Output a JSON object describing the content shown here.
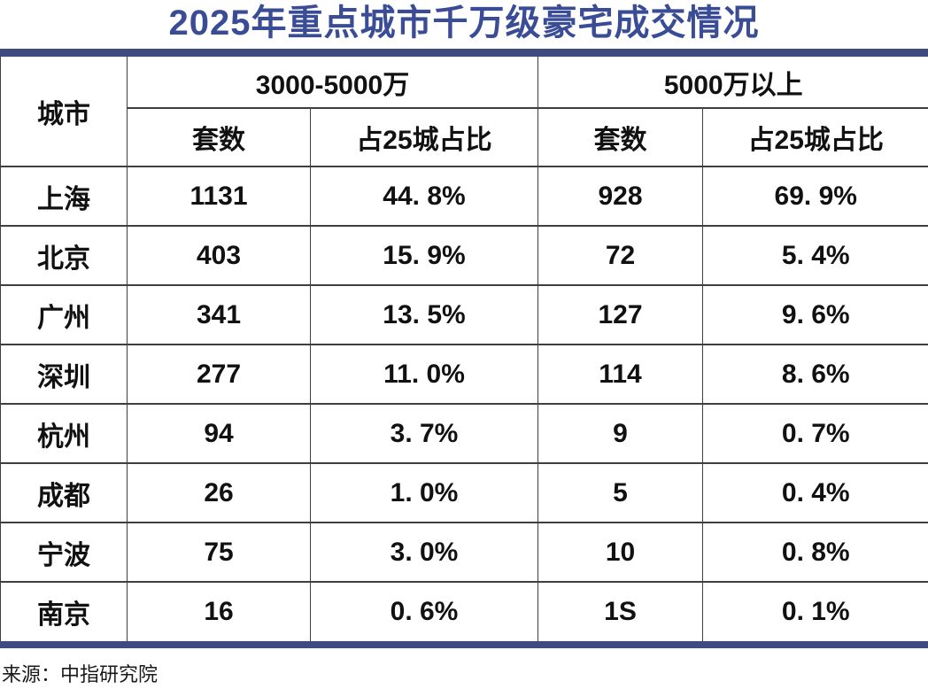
{
  "title": "2025年重点城市千万级豪宅成交情况",
  "source_note": "来源：中指研究院",
  "colors": {
    "title_blue": "#3A4C96",
    "bar_navy": "#3E4A80",
    "border_gray": "#3f3f3f",
    "background": "#ffffff",
    "text": "#111111"
  },
  "chart_data": {
    "type": "table",
    "title": "2025年重点城市千万级豪宅成交情况",
    "city_column_header": "城市",
    "groups": [
      {
        "label": "3000-5000万",
        "subcolumns": [
          "套数",
          "占25城占比"
        ]
      },
      {
        "label": "5000万以上",
        "subcolumns": [
          "套数",
          "占25城占比"
        ]
      }
    ],
    "columns": [
      "城市",
      "3000-5000万 套数",
      "3000-5000万 占25城占比",
      "5000万以上 套数",
      "5000万以上 占25城占比"
    ],
    "rows": [
      {
        "city": "上海",
        "units_3000_5000": "1131",
        "share_3000_5000": "44. 8%",
        "units_5000_plus": "928",
        "share_5000_plus": "69. 9%"
      },
      {
        "city": "北京",
        "units_3000_5000": "403",
        "share_3000_5000": "15. 9%",
        "units_5000_plus": "72",
        "share_5000_plus": "5. 4%"
      },
      {
        "city": "广州",
        "units_3000_5000": "341",
        "share_3000_5000": "13. 5%",
        "units_5000_plus": "127",
        "share_5000_plus": "9. 6%"
      },
      {
        "city": "深圳",
        "units_3000_5000": "277",
        "share_3000_5000": "11. 0%",
        "units_5000_plus": "114",
        "share_5000_plus": "8. 6%"
      },
      {
        "city": "杭州",
        "units_3000_5000": "94",
        "share_3000_5000": "3. 7%",
        "units_5000_plus": "9",
        "share_5000_plus": "0. 7%"
      },
      {
        "city": "成都",
        "units_3000_5000": "26",
        "share_3000_5000": "1. 0%",
        "units_5000_plus": "5",
        "share_5000_plus": "0. 4%"
      },
      {
        "city": "宁波",
        "units_3000_5000": "75",
        "share_3000_5000": "3. 0%",
        "units_5000_plus": "10",
        "share_5000_plus": "0. 8%"
      },
      {
        "city": "南京",
        "units_3000_5000": "16",
        "share_3000_5000": "0. 6%",
        "units_5000_plus": "1S",
        "share_5000_plus": "0. 1%"
      }
    ],
    "source": "来源：中指研究院"
  }
}
